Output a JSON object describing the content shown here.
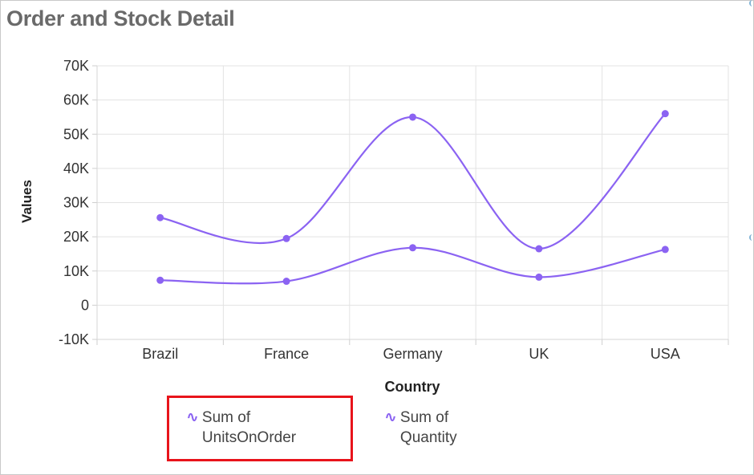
{
  "title": "Order and Stock Detail",
  "chart_data": {
    "type": "line",
    "categories": [
      "Brazil",
      "France",
      "Germany",
      "UK",
      "USA"
    ],
    "series": [
      {
        "name": "Sum of UnitsOnOrder",
        "values": [
          7300,
          7000,
          16800,
          8200,
          16300
        ],
        "color": "#8b63f2"
      },
      {
        "name": "Sum of Quantity",
        "values": [
          25600,
          19500,
          55000,
          16500,
          56000
        ],
        "color": "#8b63f2"
      }
    ],
    "xlabel": "Country",
    "ylabel": "Values",
    "ylim": [
      -10000,
      70000
    ],
    "yticks": [
      {
        "value": -10000,
        "label": "-10K"
      },
      {
        "value": 0,
        "label": "0"
      },
      {
        "value": 10000,
        "label": "10K"
      },
      {
        "value": 20000,
        "label": "20K"
      },
      {
        "value": 30000,
        "label": "30K"
      },
      {
        "value": 40000,
        "label": "40K"
      },
      {
        "value": 50000,
        "label": "50K"
      },
      {
        "value": 60000,
        "label": "60K"
      },
      {
        "value": 70000,
        "label": "70K"
      }
    ],
    "grid": true,
    "smooth": true,
    "legend_position": "bottom-left"
  },
  "legend": {
    "items": [
      {
        "line1": "Sum of",
        "line2": "UnitsOnOrder",
        "icon": "spline-icon",
        "highlighted": true
      },
      {
        "line1": "Sum of",
        "line2": "Quantity",
        "icon": "spline-icon",
        "highlighted": false
      }
    ]
  }
}
